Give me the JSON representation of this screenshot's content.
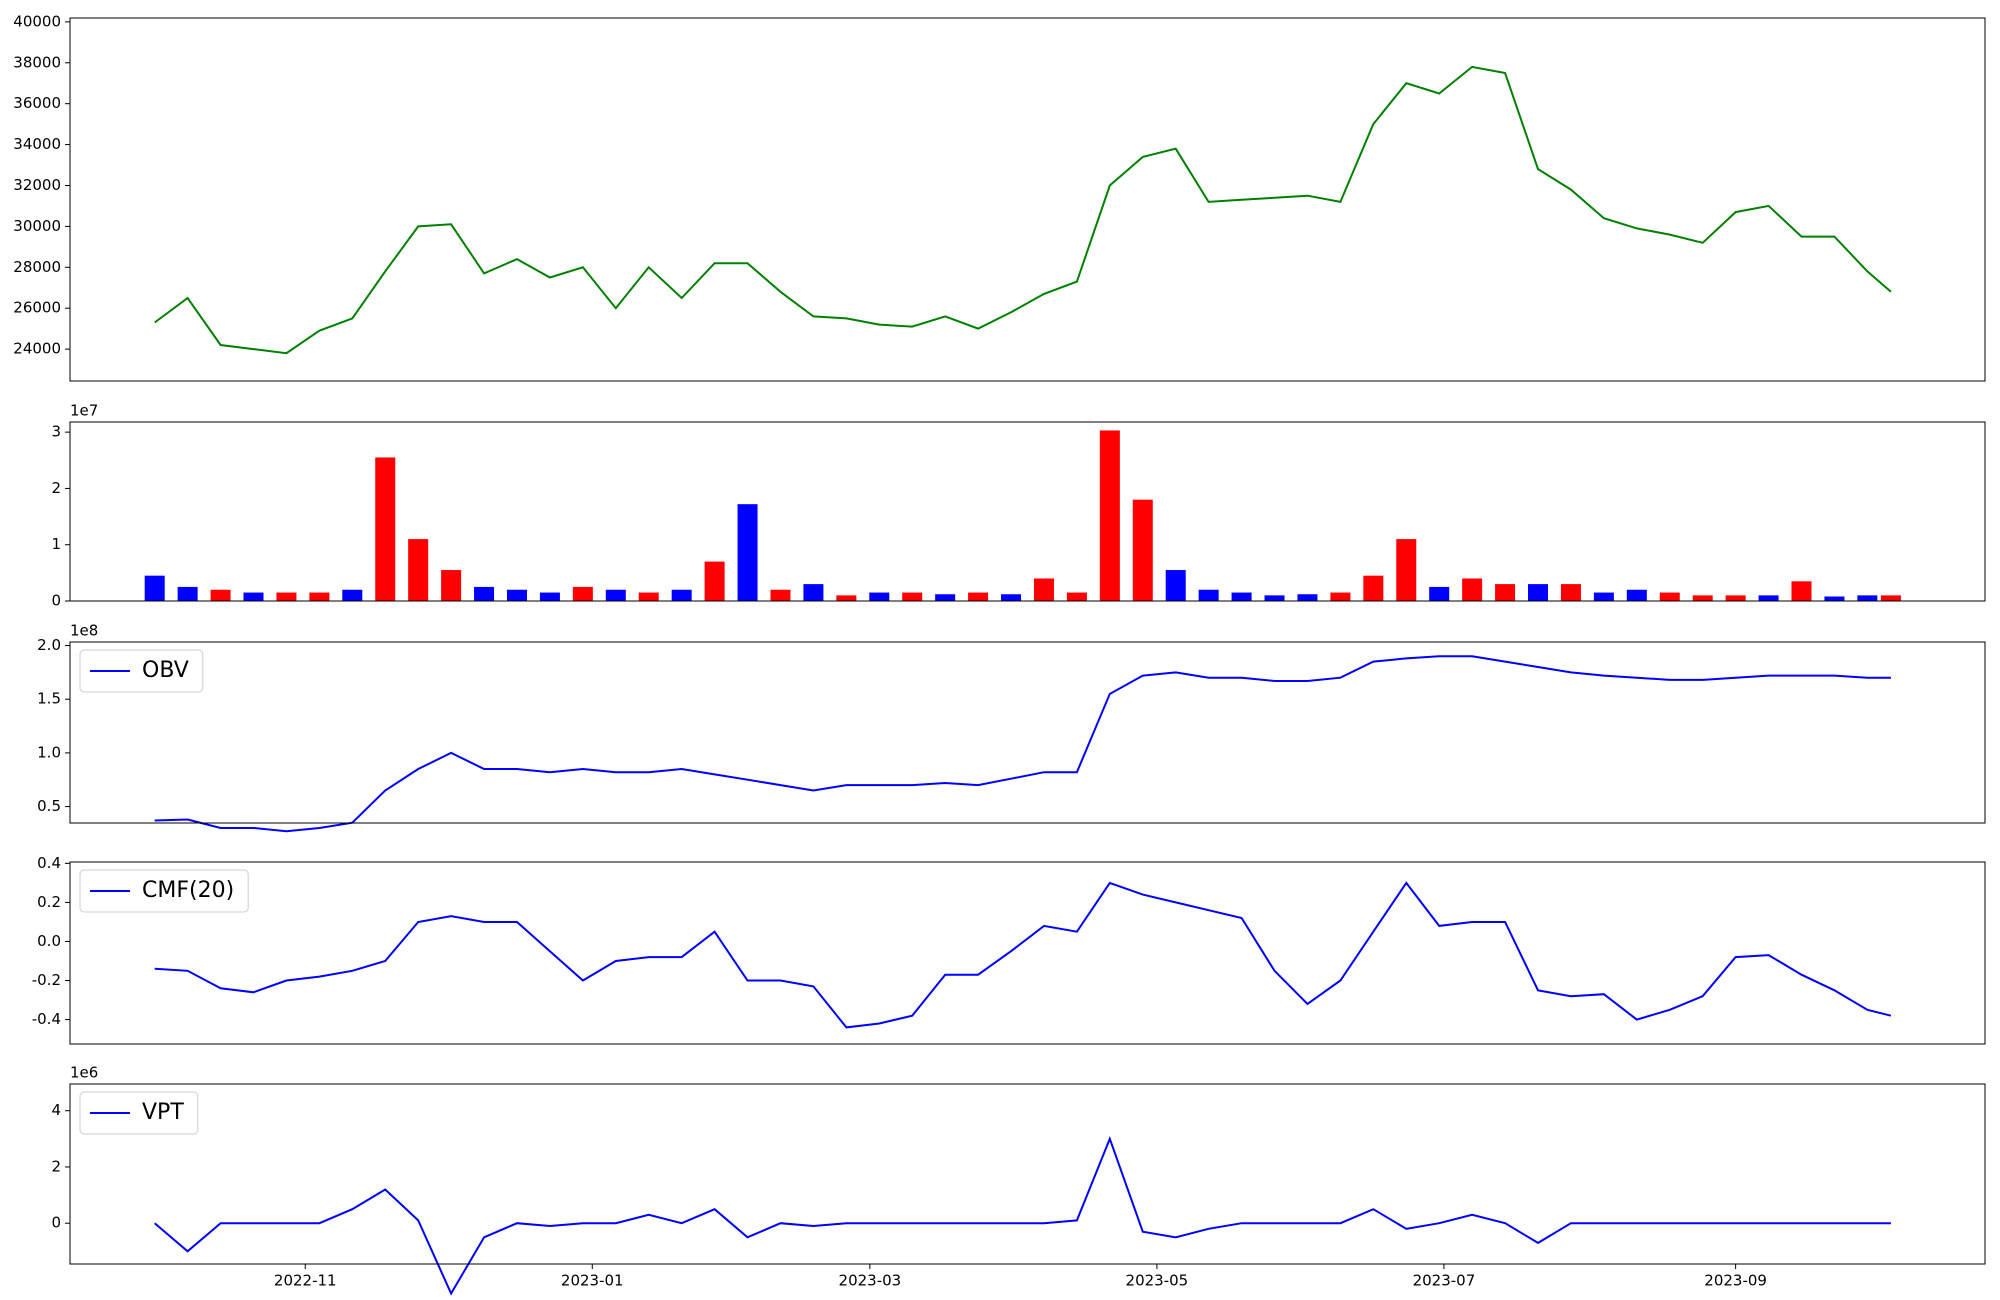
{
  "chart_data": [
    {
      "type": "line",
      "color": "green",
      "x": [
        "2022-09-30",
        "2022-10-07",
        "2022-10-14",
        "2022-10-21",
        "2022-10-28",
        "2022-11-04",
        "2022-11-11",
        "2022-11-18",
        "2022-11-25",
        "2022-12-02",
        "2022-12-09",
        "2022-12-16",
        "2022-12-23",
        "2022-12-30",
        "2023-01-06",
        "2023-01-13",
        "2023-01-20",
        "2023-01-27",
        "2023-02-03",
        "2023-02-10",
        "2023-02-17",
        "2023-02-24",
        "2023-03-03",
        "2023-03-10",
        "2023-03-17",
        "2023-03-24",
        "2023-03-31",
        "2023-04-07",
        "2023-04-14",
        "2023-04-21",
        "2023-04-28",
        "2023-05-05",
        "2023-05-12",
        "2023-05-19",
        "2023-05-26",
        "2023-06-02",
        "2023-06-09",
        "2023-06-16",
        "2023-06-23",
        "2023-06-30",
        "2023-07-07",
        "2023-07-14",
        "2023-07-21",
        "2023-07-28",
        "2023-08-04",
        "2023-08-11",
        "2023-08-18",
        "2023-08-25",
        "2023-09-01",
        "2023-09-08",
        "2023-09-15",
        "2023-09-22",
        "2023-09-29",
        "2023-10-04"
      ],
      "values": [
        25300,
        26500,
        24200,
        24000,
        23800,
        24900,
        25500,
        27800,
        30000,
        30100,
        27700,
        28400,
        27500,
        28000,
        26000,
        28000,
        26500,
        28200,
        28200,
        26800,
        25600,
        25500,
        25200,
        25100,
        25600,
        25000,
        25800,
        26700,
        27300,
        32000,
        33400,
        33800,
        31200,
        31300,
        31400,
        31500,
        31200,
        35000,
        37000,
        36500,
        37800,
        37500,
        32800,
        31800,
        30400,
        29900,
        29600,
        29200,
        30700,
        31000,
        29500,
        29500,
        27800,
        26800
      ],
      "xlim": [
        "2022-09-12",
        "2023-10-24"
      ],
      "ylim": [
        22440,
        40190
      ],
      "yticks": [
        24000,
        26000,
        28000,
        30000,
        32000,
        34000,
        36000,
        38000,
        40000
      ]
    },
    {
      "type": "bar",
      "x": [
        "2022-09-30",
        "2022-10-07",
        "2022-10-14",
        "2022-10-21",
        "2022-10-28",
        "2022-11-04",
        "2022-11-11",
        "2022-11-18",
        "2022-11-25",
        "2022-12-02",
        "2022-12-09",
        "2022-12-16",
        "2022-12-23",
        "2022-12-30",
        "2023-01-06",
        "2023-01-13",
        "2023-01-20",
        "2023-01-27",
        "2023-02-03",
        "2023-02-10",
        "2023-02-17",
        "2023-02-24",
        "2023-03-03",
        "2023-03-10",
        "2023-03-17",
        "2023-03-24",
        "2023-03-31",
        "2023-04-07",
        "2023-04-14",
        "2023-04-21",
        "2023-04-28",
        "2023-05-05",
        "2023-05-12",
        "2023-05-19",
        "2023-05-26",
        "2023-06-02",
        "2023-06-09",
        "2023-06-16",
        "2023-06-23",
        "2023-06-30",
        "2023-07-07",
        "2023-07-14",
        "2023-07-21",
        "2023-07-28",
        "2023-08-04",
        "2023-08-11",
        "2023-08-18",
        "2023-08-25",
        "2023-09-01",
        "2023-09-08",
        "2023-09-15",
        "2023-09-22",
        "2023-09-29",
        "2023-10-04"
      ],
      "values": [
        4500000,
        2500000,
        2000000,
        1500000,
        1500000,
        1500000,
        2000000,
        25500000,
        11000000,
        5500000,
        2500000,
        2000000,
        1500000,
        2500000,
        2000000,
        1500000,
        2000000,
        7000000,
        17200000,
        2000000,
        3000000,
        1000000,
        1500000,
        1500000,
        1200000,
        1500000,
        1200000,
        4000000,
        1500000,
        30300000,
        18000000,
        5500000,
        2000000,
        1500000,
        1000000,
        1200000,
        1500000,
        4500000,
        11000000,
        2500000,
        4000000,
        3000000,
        3000000,
        3000000,
        1500000,
        2000000,
        1500000,
        1000000,
        1000000,
        1000000,
        3500000,
        800000,
        1000000,
        1000000
      ],
      "colors": [
        "blue",
        "blue",
        "red",
        "blue",
        "red",
        "red",
        "blue",
        "red",
        "red",
        "red",
        "blue",
        "blue",
        "blue",
        "red",
        "blue",
        "red",
        "blue",
        "red",
        "blue",
        "red",
        "blue",
        "red",
        "blue",
        "red",
        "blue",
        "red",
        "blue",
        "red",
        "red",
        "red",
        "red",
        "blue",
        "blue",
        "blue",
        "blue",
        "blue",
        "red",
        "red",
        "red",
        "blue",
        "red",
        "red",
        "blue",
        "red",
        "blue",
        "blue",
        "red",
        "red",
        "red",
        "blue",
        "red",
        "blue",
        "blue",
        "red"
      ],
      "xlim": [
        "2022-09-12",
        "2023-10-24"
      ],
      "ylim": [
        0,
        31800000
      ],
      "yticks": [
        {
          "value": 0,
          "label": "0"
        },
        {
          "value": 10000000,
          "label": "1"
        },
        {
          "value": 20000000,
          "label": "2"
        },
        {
          "value": 30000000,
          "label": "3"
        }
      ],
      "offset_label": "1e7"
    },
    {
      "type": "line",
      "legend": "upper left",
      "x": [
        "2022-09-30",
        "2022-10-07",
        "2022-10-14",
        "2022-10-21",
        "2022-10-28",
        "2022-11-04",
        "2022-11-11",
        "2022-11-18",
        "2022-11-25",
        "2022-12-02",
        "2022-12-09",
        "2022-12-16",
        "2022-12-23",
        "2022-12-30",
        "2023-01-06",
        "2023-01-13",
        "2023-01-20",
        "2023-01-27",
        "2023-02-03",
        "2023-02-10",
        "2023-02-17",
        "2023-02-24",
        "2023-03-03",
        "2023-03-10",
        "2023-03-17",
        "2023-03-24",
        "2023-03-31",
        "2023-04-07",
        "2023-04-14",
        "2023-04-21",
        "2023-04-28",
        "2023-05-05",
        "2023-05-12",
        "2023-05-19",
        "2023-05-26",
        "2023-06-02",
        "2023-06-09",
        "2023-06-16",
        "2023-06-23",
        "2023-06-30",
        "2023-07-07",
        "2023-07-14",
        "2023-07-21",
        "2023-07-28",
        "2023-08-04",
        "2023-08-11",
        "2023-08-18",
        "2023-08-25",
        "2023-09-01",
        "2023-09-08",
        "2023-09-15",
        "2023-09-22",
        "2023-09-29",
        "2023-10-04"
      ],
      "series": [
        {
          "name": "OBV",
          "color": "blue",
          "values": [
            37000000,
            38000000,
            30000000,
            30000000,
            27000000,
            30000000,
            35000000,
            65000000,
            85000000,
            100000000,
            85000000,
            85000000,
            82000000,
            85000000,
            82000000,
            82000000,
            85000000,
            80000000,
            75000000,
            70000000,
            65000000,
            70000000,
            70000000,
            70000000,
            72000000,
            70000000,
            76000000,
            82000000,
            82000000,
            155000000,
            172000000,
            175000000,
            170000000,
            170000000,
            167000000,
            167000000,
            170000000,
            185000000,
            188000000,
            190000000,
            190000000,
            185000000,
            180000000,
            175000000,
            172000000,
            170000000,
            168000000,
            168000000,
            170000000,
            172000000,
            172000000,
            172000000,
            170000000,
            170000000
          ]
        }
      ],
      "xlim": [
        "2022-09-12",
        "2023-10-24"
      ],
      "ylim": [
        34700000,
        203300000
      ],
      "yticks": [
        {
          "value": 50000000,
          "label": "0.5"
        },
        {
          "value": 100000000,
          "label": "1.0"
        },
        {
          "value": 150000000,
          "label": "1.5"
        },
        {
          "value": 200000000,
          "label": "2.0"
        }
      ],
      "offset_label": "1e8"
    },
    {
      "type": "line",
      "legend": "upper left",
      "x": [
        "2022-09-30",
        "2022-10-07",
        "2022-10-14",
        "2022-10-21",
        "2022-10-28",
        "2022-11-04",
        "2022-11-11",
        "2022-11-18",
        "2022-11-25",
        "2022-12-02",
        "2022-12-09",
        "2022-12-16",
        "2022-12-23",
        "2022-12-30",
        "2023-01-06",
        "2023-01-13",
        "2023-01-20",
        "2023-01-27",
        "2023-02-03",
        "2023-02-10",
        "2023-02-17",
        "2023-02-24",
        "2023-03-03",
        "2023-03-10",
        "2023-03-17",
        "2023-03-24",
        "2023-03-31",
        "2023-04-07",
        "2023-04-14",
        "2023-04-21",
        "2023-04-28",
        "2023-05-05",
        "2023-05-12",
        "2023-05-19",
        "2023-05-26",
        "2023-06-02",
        "2023-06-09",
        "2023-06-16",
        "2023-06-23",
        "2023-06-30",
        "2023-07-07",
        "2023-07-14",
        "2023-07-21",
        "2023-07-28",
        "2023-08-04",
        "2023-08-11",
        "2023-08-18",
        "2023-08-25",
        "2023-09-01",
        "2023-09-08",
        "2023-09-15",
        "2023-09-22",
        "2023-09-29",
        "2023-10-04"
      ],
      "series": [
        {
          "name": "CMF(20)",
          "color": "blue",
          "values": [
            -0.14,
            -0.15,
            -0.24,
            -0.26,
            -0.2,
            -0.18,
            -0.15,
            -0.1,
            0.1,
            0.13,
            0.1,
            0.1,
            -0.05,
            -0.2,
            -0.1,
            -0.08,
            -0.08,
            0.05,
            -0.2,
            -0.2,
            -0.23,
            -0.44,
            -0.42,
            -0.38,
            -0.17,
            -0.17,
            -0.05,
            0.08,
            0.05,
            0.3,
            0.24,
            0.2,
            0.16,
            0.12,
            -0.15,
            -0.32,
            -0.2,
            0.05,
            0.3,
            0.08,
            0.1,
            0.1,
            -0.25,
            -0.28,
            -0.27,
            -0.4,
            -0.35,
            -0.28,
            -0.08,
            -0.07,
            -0.17,
            -0.25,
            -0.35,
            -0.38
          ]
        }
      ],
      "xlim": [
        "2022-09-12",
        "2023-10-24"
      ],
      "ylim": [
        -0.525,
        0.407
      ],
      "yticks": [
        -0.4,
        -0.2,
        {
          "value": 0,
          "label": "0.0"
        },
        0.2,
        0.4
      ]
    },
    {
      "type": "line",
      "legend": "upper left",
      "x": [
        "2022-09-30",
        "2022-10-07",
        "2022-10-14",
        "2022-10-21",
        "2022-10-28",
        "2022-11-04",
        "2022-11-11",
        "2022-11-18",
        "2022-11-25",
        "2022-12-02",
        "2022-12-09",
        "2022-12-16",
        "2022-12-23",
        "2022-12-30",
        "2023-01-06",
        "2023-01-13",
        "2023-01-20",
        "2023-01-27",
        "2023-02-03",
        "2023-02-10",
        "2023-02-17",
        "2023-02-24",
        "2023-03-03",
        "2023-03-10",
        "2023-03-17",
        "2023-03-24",
        "2023-03-31",
        "2023-04-07",
        "2023-04-14",
        "2023-04-21",
        "2023-04-28",
        "2023-05-05",
        "2023-05-12",
        "2023-05-19",
        "2023-05-26",
        "2023-06-02",
        "2023-06-09",
        "2023-06-16",
        "2023-06-23",
        "2023-06-30",
        "2023-07-07",
        "2023-07-14",
        "2023-07-21",
        "2023-07-28",
        "2023-08-04",
        "2023-08-11",
        "2023-08-18",
        "2023-08-25",
        "2023-09-01",
        "2023-09-08",
        "2023-09-15",
        "2023-09-22",
        "2023-09-29",
        "2023-10-04"
      ],
      "series": [
        {
          "name": "VPT",
          "color": "blue",
          "values": [
            0,
            -1000000,
            0,
            0,
            0,
            0,
            500000,
            1200000,
            100000,
            -2500000,
            -500000,
            0,
            -100000,
            0,
            0,
            300000,
            0,
            500000,
            -500000,
            0,
            -100000,
            0,
            0,
            0,
            0,
            0,
            0,
            0,
            100000,
            3000000,
            -300000,
            -500000,
            -200000,
            0,
            0,
            0,
            0,
            500000,
            -200000,
            0,
            300000,
            0,
            -700000,
            0,
            0,
            0,
            0,
            0,
            0,
            0,
            0,
            0,
            0,
            0
          ]
        }
      ],
      "xlim": [
        "2022-09-12",
        "2023-10-24"
      ],
      "ylim": [
        -1450000,
        4950000
      ],
      "yticks": [
        {
          "value": 0,
          "label": "0"
        },
        {
          "value": 2000000,
          "label": "2"
        },
        {
          "value": 4000000,
          "label": "4"
        }
      ],
      "offset_label": "1e6",
      "xticks": [
        {
          "value": "2022-11-01",
          "label": "2022-11"
        },
        {
          "value": "2023-01-01",
          "label": "2023-01"
        },
        {
          "value": "2023-03-01",
          "label": "2023-03"
        },
        {
          "value": "2023-05-01",
          "label": "2023-05"
        },
        {
          "value": "2023-07-01",
          "label": "2023-07"
        },
        {
          "value": "2023-09-01",
          "label": "2023-09"
        }
      ]
    }
  ]
}
